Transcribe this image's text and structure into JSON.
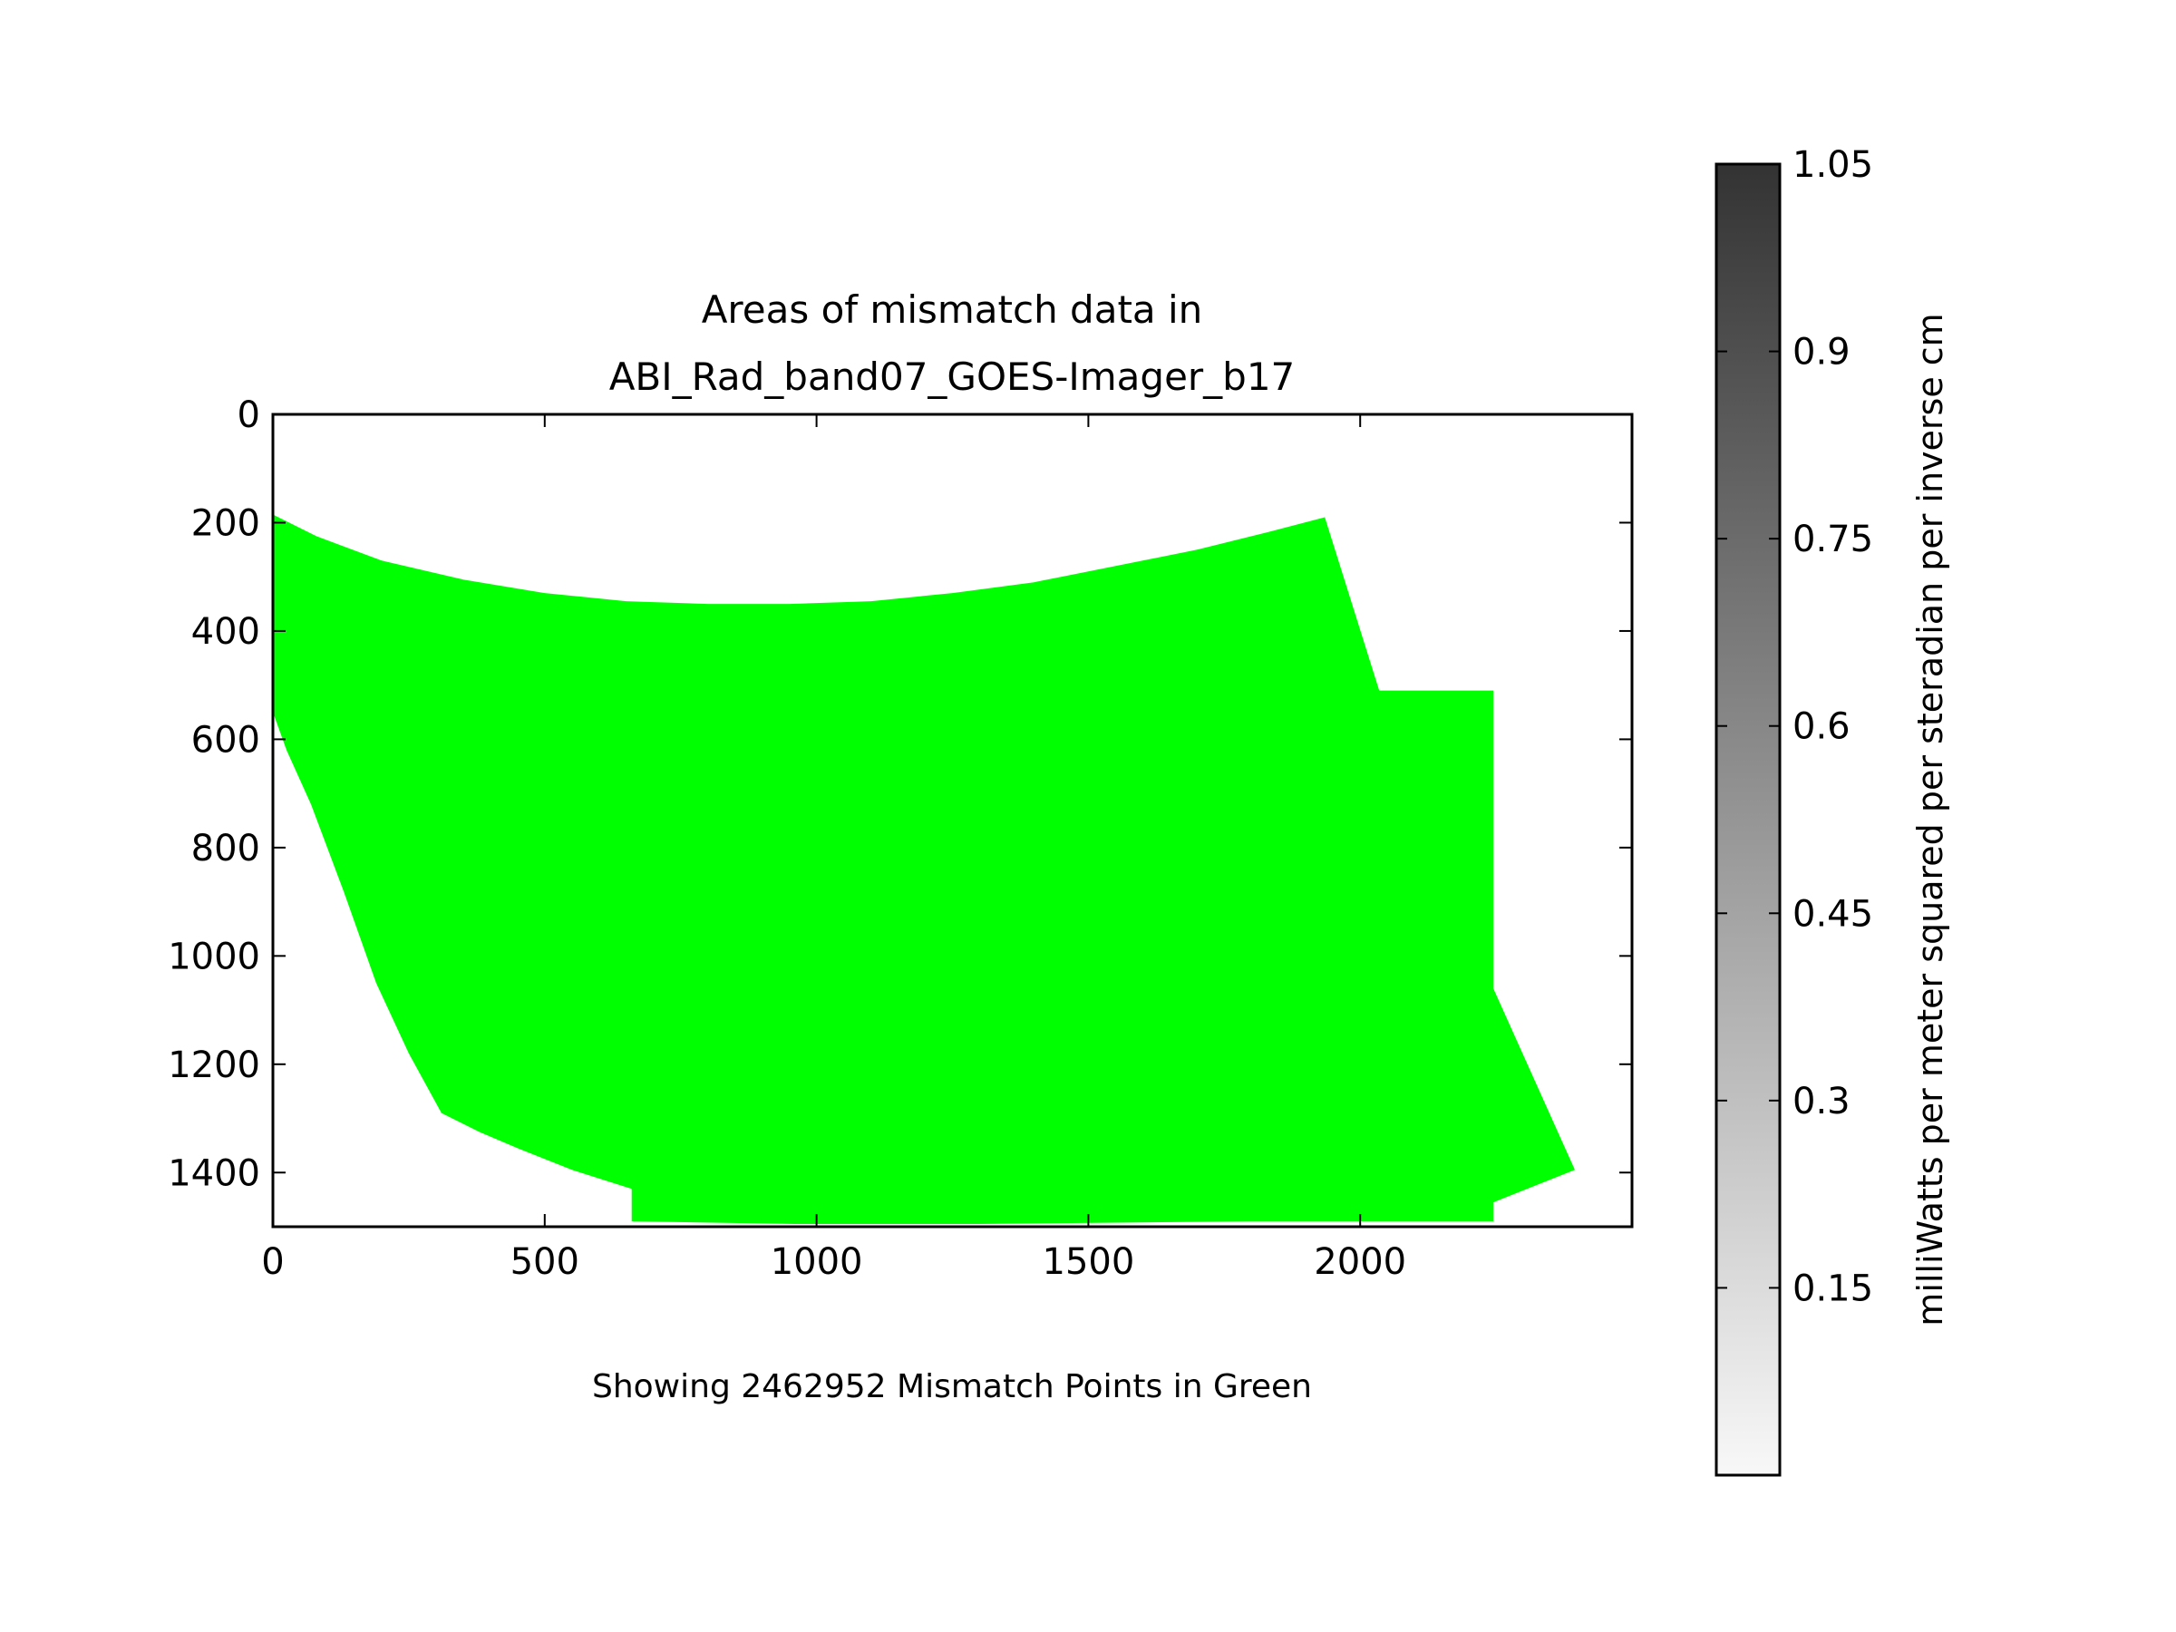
{
  "chart_data": {
    "type": "heatmap",
    "title_lines": [
      "Areas of mismatch data in",
      "ABI_Rad_band07_GOES-Imager_b17"
    ],
    "xlabel": "Showing 2462952 Mismatch Points in Green",
    "ylabel": "",
    "xlim": [
      0,
      2500
    ],
    "ylim": [
      1500,
      0
    ],
    "y_inverted": true,
    "grid": false,
    "x_ticks": [
      0,
      500,
      1000,
      1500,
      2000
    ],
    "y_ticks": [
      0,
      200,
      400,
      600,
      800,
      1000,
      1200,
      1400
    ],
    "mismatch_color": "#00ff00",
    "mismatch_region": [
      [
        0,
        185
      ],
      [
        80,
        225
      ],
      [
        200,
        270
      ],
      [
        350,
        305
      ],
      [
        500,
        330
      ],
      [
        650,
        345
      ],
      [
        800,
        350
      ],
      [
        950,
        350
      ],
      [
        1100,
        345
      ],
      [
        1250,
        330
      ],
      [
        1400,
        310
      ],
      [
        1550,
        280
      ],
      [
        1700,
        250
      ],
      [
        1840,
        215
      ],
      [
        1935,
        190
      ],
      [
        2035,
        510
      ],
      [
        2245,
        510
      ],
      [
        2245,
        1060
      ],
      [
        2395,
        1395
      ],
      [
        2245,
        1455
      ],
      [
        2245,
        1490
      ],
      [
        1800,
        1490
      ],
      [
        1300,
        1495
      ],
      [
        960,
        1495
      ],
      [
        660,
        1490
      ],
      [
        660,
        1430
      ],
      [
        550,
        1395
      ],
      [
        450,
        1355
      ],
      [
        380,
        1325
      ],
      [
        310,
        1290
      ],
      [
        250,
        1180
      ],
      [
        190,
        1050
      ],
      [
        130,
        880
      ],
      [
        70,
        720
      ],
      [
        25,
        620
      ],
      [
        0,
        550
      ]
    ],
    "colorbar": {
      "label": "milliWatts per meter squared per steradian per inverse cm",
      "range": [
        0,
        1.05
      ],
      "ticks": [
        0.15,
        0.3,
        0.45,
        0.6,
        0.75,
        0.9,
        1.05
      ],
      "tick_labels": [
        "0.15",
        "0.3",
        "0.45",
        "0.6",
        "0.75",
        "0.9",
        "1.05"
      ],
      "colormap": "greys",
      "color_low": "#f8f8f8",
      "color_high": "#333333"
    }
  }
}
